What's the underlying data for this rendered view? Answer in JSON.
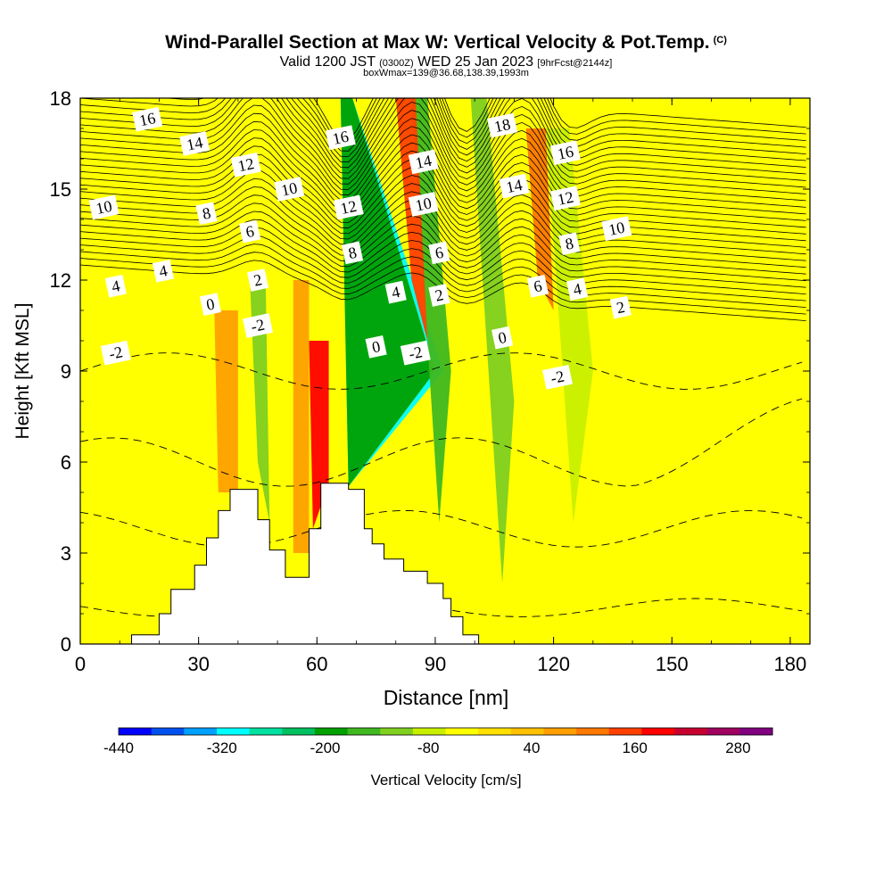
{
  "header": {
    "title": "Wind-Parallel Section at Max W: Vertical Velocity & Pot.Temp.",
    "copyright_mark": "(C)",
    "valid_prefix": "Valid 1200 JST",
    "valid_utc": "(0300Z)",
    "valid_date": "WED 25 Jan 2023",
    "forecast_tag": "[9hrFcst@2144z]",
    "box_info": "boxWmax=139@36.68,138.39,1993m"
  },
  "chart_data": {
    "type": "heatmap",
    "xlabel": "Distance [nm]",
    "ylabel": "Height [Kft MSL]",
    "xlim": [
      0,
      185
    ],
    "ylim": [
      0,
      18
    ],
    "xticks": [
      0,
      30,
      60,
      90,
      120,
      150,
      180
    ],
    "yticks": [
      0,
      3,
      6,
      9,
      12,
      15,
      18
    ],
    "background_value": -40,
    "colorbar": {
      "label": "Vertical Velocity [cm/s]",
      "min": -440,
      "max": 320,
      "step": 40,
      "tick_labels": [
        -440,
        -320,
        -200,
        -80,
        40,
        160,
        280
      ],
      "colors": [
        "#0000ff",
        "#0050f0",
        "#00a0ff",
        "#00ffff",
        "#00e0a0",
        "#00c060",
        "#00a000",
        "#40b820",
        "#80d020",
        "#c8f000",
        "#ffff00",
        "#ffe000",
        "#ffc000",
        "#ffa000",
        "#ff7800",
        "#ff4000",
        "#ff0000",
        "#c80030",
        "#a00060",
        "#800080"
      ]
    },
    "velocity_bands": [
      {
        "x": [
          66,
          69,
          92,
          68
        ],
        "y": [
          18,
          18,
          9,
          5.2
        ],
        "value": -320
      },
      {
        "x": [
          66,
          69,
          90,
          68
        ],
        "y": [
          18,
          18,
          9,
          5.2
        ],
        "value": -200
      },
      {
        "x": [
          84,
          88,
          94,
          91
        ],
        "y": [
          18,
          18,
          9,
          4
        ],
        "value": -160
      },
      {
        "x": [
          99,
          103,
          110,
          107
        ],
        "y": [
          18,
          18,
          8,
          2
        ],
        "value": -120
      },
      {
        "x": [
          118,
          124,
          130,
          125
        ],
        "y": [
          17,
          17,
          9,
          4
        ],
        "value": -80
      },
      {
        "x": [
          43,
          47,
          48,
          45
        ],
        "y": [
          12,
          12,
          4,
          6
        ],
        "value": -120
      },
      {
        "x": [
          80,
          85,
          88,
          84
        ],
        "y": [
          18,
          18,
          10,
          12
        ],
        "value": 160
      },
      {
        "x": [
          113,
          118,
          120,
          116
        ],
        "y": [
          17,
          17,
          11,
          12
        ],
        "value": 120
      },
      {
        "x": [
          58,
          63,
          63,
          59
        ],
        "y": [
          10,
          10,
          5.3,
          3.8
        ],
        "value": 200
      },
      {
        "x": [
          34,
          40,
          40,
          35
        ],
        "y": [
          11,
          11,
          5,
          5
        ],
        "value": 80
      },
      {
        "x": [
          54,
          58,
          58,
          54
        ],
        "y": [
          12,
          12,
          3,
          3
        ],
        "value": 80
      }
    ],
    "terrain": {
      "x": [
        0,
        13,
        13,
        20,
        20,
        23,
        23,
        29,
        29,
        32,
        32,
        35,
        35,
        38,
        38,
        45,
        45,
        48,
        48,
        52,
        52,
        58,
        58,
        61,
        61,
        68,
        68,
        72,
        72,
        74,
        74,
        77,
        77,
        82,
        82,
        88,
        88,
        92,
        92,
        94,
        94,
        97,
        97,
        101,
        101,
        185
      ],
      "y": [
        0,
        0,
        0.3,
        0.3,
        1.0,
        1.0,
        1.8,
        1.8,
        2.6,
        2.6,
        3.5,
        3.5,
        4.4,
        4.4,
        5.1,
        5.1,
        4.1,
        4.1,
        3.1,
        3.1,
        2.2,
        2.2,
        3.8,
        3.8,
        5.3,
        5.3,
        5.1,
        5.1,
        3.8,
        3.8,
        3.3,
        3.3,
        2.8,
        2.8,
        2.4,
        2.4,
        2.0,
        2.0,
        1.5,
        1.5,
        0.9,
        0.9,
        0.3,
        0.3,
        0,
        0
      ]
    },
    "potential_temperature_labels": [
      {
        "text": "16",
        "x": 17,
        "y": 17.3
      },
      {
        "text": "14",
        "x": 29,
        "y": 16.5
      },
      {
        "text": "12",
        "x": 42,
        "y": 15.8
      },
      {
        "text": "10",
        "x": 53,
        "y": 15.0
      },
      {
        "text": "10",
        "x": 6,
        "y": 14.4
      },
      {
        "text": "8",
        "x": 32,
        "y": 14.2
      },
      {
        "text": "6",
        "x": 43,
        "y": 13.6
      },
      {
        "text": "4",
        "x": 21,
        "y": 12.3
      },
      {
        "text": "4",
        "x": 9,
        "y": 11.8
      },
      {
        "text": "2",
        "x": 45,
        "y": 12.0
      },
      {
        "text": "0",
        "x": 33,
        "y": 11.2
      },
      {
        "text": "-2",
        "x": 45,
        "y": 10.5
      },
      {
        "text": "-2",
        "x": 9,
        "y": 9.6
      },
      {
        "text": "16",
        "x": 66,
        "y": 16.7
      },
      {
        "text": "12",
        "x": 68,
        "y": 14.4
      },
      {
        "text": "8",
        "x": 69,
        "y": 12.9
      },
      {
        "text": "14",
        "x": 87,
        "y": 15.9
      },
      {
        "text": "10",
        "x": 87,
        "y": 14.5
      },
      {
        "text": "6",
        "x": 91,
        "y": 12.9
      },
      {
        "text": "4",
        "x": 80,
        "y": 11.6
      },
      {
        "text": "2",
        "x": 91,
        "y": 11.5
      },
      {
        "text": "0",
        "x": 75,
        "y": 9.8
      },
      {
        "text": "-2",
        "x": 85,
        "y": 9.6
      },
      {
        "text": "18",
        "x": 107,
        "y": 17.1
      },
      {
        "text": "14",
        "x": 110,
        "y": 15.1
      },
      {
        "text": "0",
        "x": 107,
        "y": 10.1
      },
      {
        "text": "6",
        "x": 116,
        "y": 11.8
      },
      {
        "text": "16",
        "x": 123,
        "y": 16.2
      },
      {
        "text": "12",
        "x": 123,
        "y": 14.7
      },
      {
        "text": "8",
        "x": 124,
        "y": 13.2
      },
      {
        "text": "4",
        "x": 126,
        "y": 11.7
      },
      {
        "text": "-2",
        "x": 121,
        "y": 8.8
      },
      {
        "text": "10",
        "x": 136,
        "y": 13.7
      },
      {
        "text": "2",
        "x": 137,
        "y": 11.1
      }
    ]
  }
}
